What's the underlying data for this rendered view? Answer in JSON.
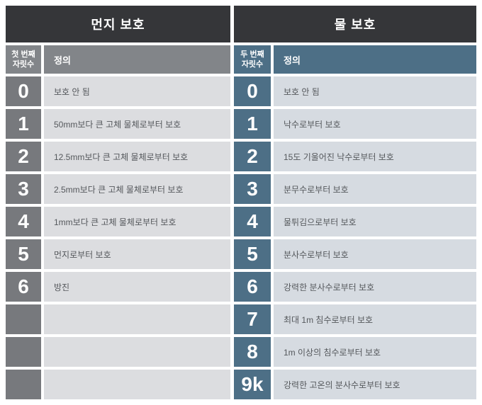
{
  "colors": {
    "header_bg": "#353639",
    "header_text": "#ffffff",
    "left_sub_bg": "#828589",
    "left_digit_bg": "#77797d",
    "left_def_bg": "#dcdde0",
    "right_accent_bg": "#4d6f86",
    "right_def_bg": "#d6dbe1",
    "def_text": "#55585c"
  },
  "left_table": {
    "title": "먼지 보호",
    "digit_header": "첫 번째 자릿수",
    "definition_header": "정의",
    "rows": [
      {
        "digit": "0",
        "definition": "보호 안 됨"
      },
      {
        "digit": "1",
        "definition": "50mm보다 큰 고체 물체로부터 보호"
      },
      {
        "digit": "2",
        "definition": "12.5mm보다 큰 고체 물체로부터 보호"
      },
      {
        "digit": "3",
        "definition": "2.5mm보다 큰 고체 물체로부터 보호"
      },
      {
        "digit": "4",
        "definition": "1mm보다 큰 고체 물체로부터 보호"
      },
      {
        "digit": "5",
        "definition": "먼지로부터 보호"
      },
      {
        "digit": "6",
        "definition": "방진"
      },
      {
        "digit": "",
        "definition": ""
      },
      {
        "digit": "",
        "definition": ""
      },
      {
        "digit": "",
        "definition": ""
      }
    ]
  },
  "right_table": {
    "title": "물 보호",
    "digit_header": "두 번째 자릿수",
    "definition_header": "정의",
    "rows": [
      {
        "digit": "0",
        "definition": "보호 안 됨"
      },
      {
        "digit": "1",
        "definition": "낙수로부터 보호"
      },
      {
        "digit": "2",
        "definition": "15도 기울어진 낙수로부터 보호"
      },
      {
        "digit": "3",
        "definition": "분무수로부터 보호"
      },
      {
        "digit": "4",
        "definition": "물튀김으로부터 보호"
      },
      {
        "digit": "5",
        "definition": "분사수로부터 보호"
      },
      {
        "digit": "6",
        "definition": "강력한 분사수로부터 보호"
      },
      {
        "digit": "7",
        "definition": "최대 1m 침수로부터 보호"
      },
      {
        "digit": "8",
        "definition": "1m 이상의 침수로부터 보호"
      },
      {
        "digit": "9k",
        "definition": "강력한 고온의 분사수로부터 보호"
      }
    ]
  }
}
